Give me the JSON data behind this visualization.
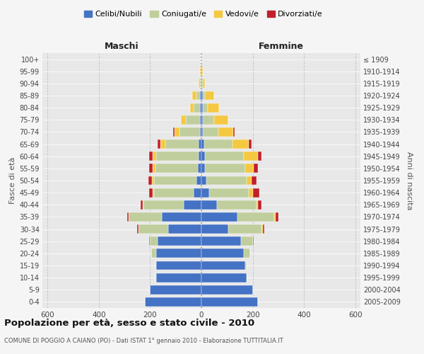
{
  "age_groups": [
    "0-4",
    "5-9",
    "10-14",
    "15-19",
    "20-24",
    "25-29",
    "30-34",
    "35-39",
    "40-44",
    "45-49",
    "50-54",
    "55-59",
    "60-64",
    "65-69",
    "70-74",
    "75-79",
    "80-84",
    "85-89",
    "90-94",
    "95-99",
    "100+"
  ],
  "birth_years": [
    "2005-2009",
    "2000-2004",
    "1995-1999",
    "1990-1994",
    "1985-1989",
    "1980-1984",
    "1975-1979",
    "1970-1974",
    "1965-1969",
    "1960-1964",
    "1955-1959",
    "1950-1954",
    "1945-1949",
    "1940-1944",
    "1935-1939",
    "1930-1934",
    "1925-1929",
    "1920-1924",
    "1915-1919",
    "1910-1914",
    "≤ 1909"
  ],
  "males": {
    "celibi": [
      220,
      200,
      175,
      175,
      175,
      170,
      130,
      155,
      70,
      30,
      20,
      15,
      10,
      10,
      5,
      5,
      5,
      5,
      0,
      0,
      0
    ],
    "coniugati": [
      0,
      0,
      5,
      5,
      20,
      30,
      115,
      130,
      155,
      155,
      165,
      165,
      165,
      130,
      80,
      55,
      25,
      15,
      5,
      0,
      0
    ],
    "vedovi": [
      0,
      0,
      0,
      0,
      0,
      0,
      0,
      0,
      3,
      5,
      8,
      10,
      15,
      20,
      20,
      20,
      15,
      15,
      5,
      5,
      0
    ],
    "divorziati": [
      0,
      0,
      0,
      0,
      0,
      5,
      5,
      5,
      10,
      15,
      15,
      15,
      15,
      10,
      5,
      0,
      0,
      0,
      0,
      0,
      0
    ]
  },
  "females": {
    "nubili": [
      220,
      200,
      175,
      170,
      165,
      155,
      105,
      140,
      60,
      30,
      20,
      15,
      15,
      10,
      5,
      5,
      5,
      5,
      0,
      0,
      0
    ],
    "coniugate": [
      0,
      0,
      5,
      5,
      25,
      45,
      130,
      145,
      155,
      155,
      155,
      155,
      150,
      110,
      60,
      45,
      20,
      10,
      5,
      0,
      0
    ],
    "vedove": [
      0,
      0,
      0,
      0,
      0,
      0,
      5,
      5,
      5,
      15,
      20,
      35,
      55,
      65,
      60,
      55,
      45,
      35,
      10,
      5,
      0
    ],
    "divorziate": [
      0,
      0,
      0,
      0,
      0,
      5,
      5,
      10,
      15,
      25,
      20,
      15,
      15,
      10,
      5,
      0,
      0,
      0,
      0,
      0,
      0
    ]
  },
  "colors": {
    "celibi": "#4472C4",
    "coniugati": "#BFCE9C",
    "vedovi": "#F5C842",
    "divorziati": "#C0202A"
  },
  "title": "Popolazione per età, sesso e stato civile - 2010",
  "subtitle": "COMUNE DI POGGIO A CAIANO (PO) - Dati ISTAT 1° gennaio 2010 - Elaborazione TUTTITALIA.IT",
  "ylabel_left": "Fasce di età",
  "ylabel_right": "Anni di nascita",
  "xlabel_left": "Maschi",
  "xlabel_right": "Femmine",
  "xlim": 620,
  "background_color": "#f5f5f5",
  "plot_bg": "#e8e8e8",
  "grid_color": "#bbbbbb",
  "bar_height": 0.75,
  "legend_labels": [
    "Celibi/Nubili",
    "Coniugati/e",
    "Vedovi/e",
    "Divorziati/e"
  ]
}
